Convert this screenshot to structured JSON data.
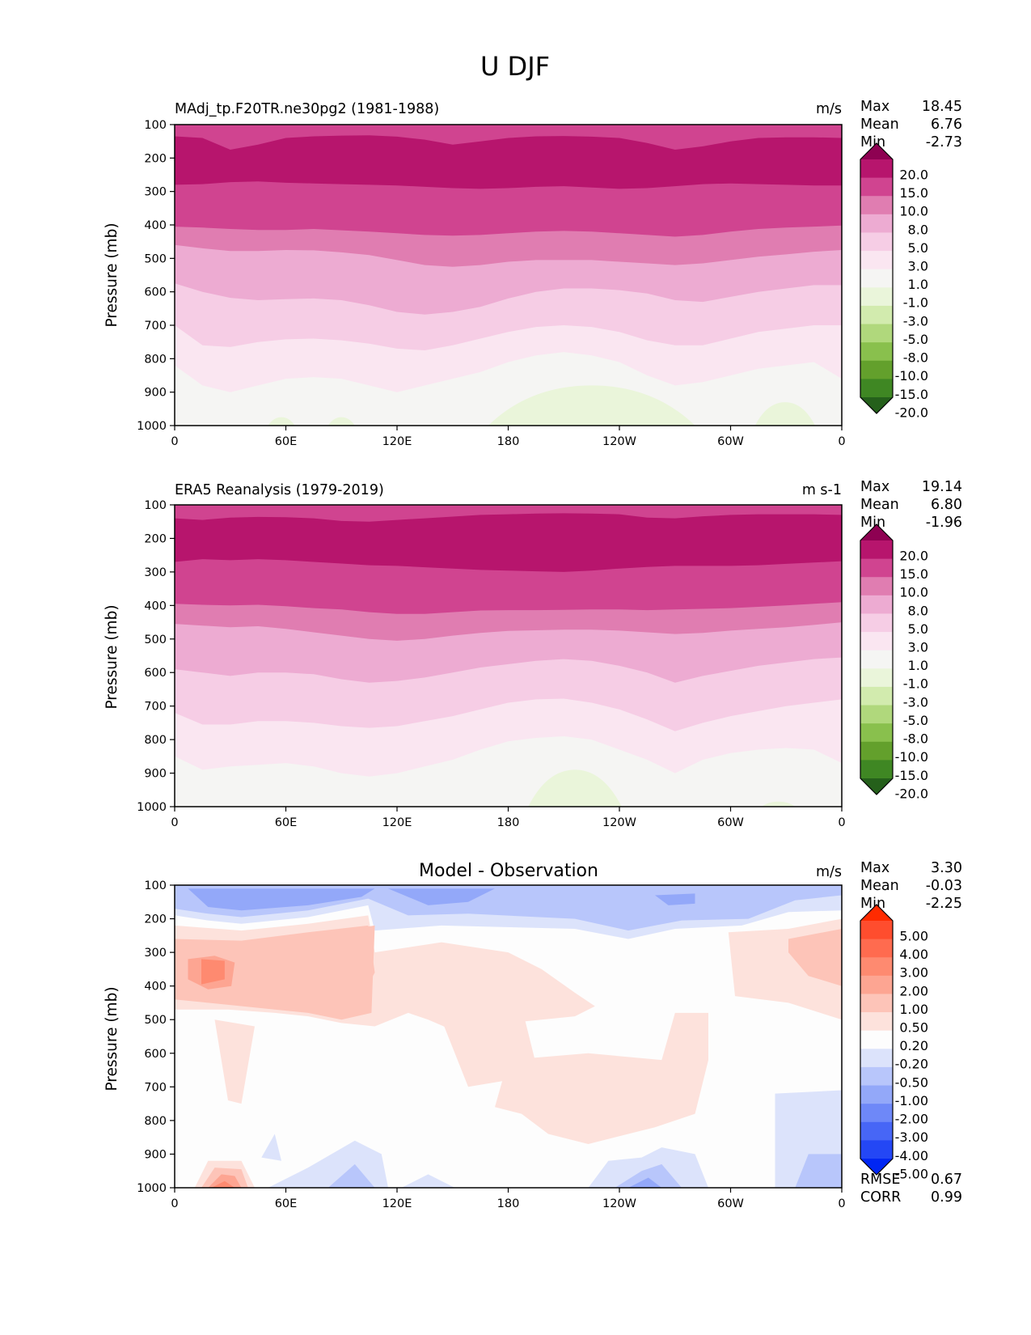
{
  "chart_data": {
    "type": "heatmap",
    "suptitle": "U DJF",
    "panels": [
      {
        "id": "model",
        "title_left": "MAdj_tp.F20TR.ne30pg2 (1981-1988)",
        "title_center": "",
        "title_right": "m/s",
        "ylabel": "Pressure (mb)",
        "yticks": [
          "100",
          "200",
          "300",
          "400",
          "500",
          "600",
          "700",
          "800",
          "900",
          "1000"
        ],
        "ylim": [
          1000,
          100
        ],
        "xticks": [
          "0",
          "60E",
          "120E",
          "180",
          "120W",
          "60W",
          "0"
        ],
        "xlim": [
          0,
          360
        ],
        "stats": [
          {
            "label": "Max",
            "value": "18.45"
          },
          {
            "label": "Mean",
            "value": "6.76"
          },
          {
            "label": "Min",
            "value": "-2.73"
          }
        ],
        "colormap": "PiYG_r",
        "levels": [
          "20.0",
          "15.0",
          "10.0",
          "8.0",
          "5.0",
          "3.0",
          "1.0",
          "-1.0",
          "-3.0",
          "-5.0",
          "-8.0",
          "-10.0",
          "-15.0",
          "-20.0"
        ],
        "colors": [
          "#8e0152",
          "#b7156d",
          "#d04490",
          "#e07db1",
          "#edabd2",
          "#f6cde5",
          "#fae6f1",
          "#f5f5f3",
          "#eaf5da",
          "#d2ebae",
          "#b0d87c",
          "#89c04d",
          "#63a02c",
          "#3f8723",
          "#25601b"
        ],
        "fields": {
          "boundaries": [
            {
              "level": 15.0,
              "depth_mb": [
                135,
                140,
                175,
                160,
                140,
                135,
                133,
                132,
                136,
                145,
                160,
                150,
                140,
                135,
                134,
                136,
                140,
                155,
                175,
                165,
                150,
                140,
                138,
                138,
                140
              ]
            },
            {
              "level": 20.0,
              "depth_mb": [
                null
              ]
            },
            {
              "level": 10.0,
              "depth_mb": [
                280,
                278,
                272,
                270,
                274,
                276,
                278,
                280,
                282,
                286,
                290,
                292,
                290,
                286,
                284,
                288,
                292,
                290,
                284,
                278,
                276,
                278,
                280,
                282,
                282
              ]
            },
            {
              "level": 8.0,
              "depth_mb": [
                405,
                408,
                412,
                415,
                415,
                412,
                416,
                420,
                425,
                430,
                432,
                430,
                425,
                420,
                418,
                420,
                425,
                430,
                435,
                430,
                420,
                412,
                408,
                405,
                402
              ]
            },
            {
              "level": 5.0,
              "depth_mb": [
                460,
                470,
                478,
                478,
                475,
                476,
                482,
                490,
                505,
                520,
                525,
                520,
                510,
                505,
                505,
                505,
                510,
                515,
                520,
                515,
                505,
                495,
                488,
                480,
                475
              ]
            },
            {
              "level": 3.0,
              "depth_mb": [
                575,
                600,
                618,
                625,
                622,
                620,
                625,
                640,
                660,
                668,
                660,
                645,
                620,
                600,
                590,
                590,
                595,
                605,
                625,
                630,
                615,
                600,
                590,
                580,
                580
              ]
            },
            {
              "level": 1.0,
              "depth_mb": [
                700,
                760,
                765,
                750,
                742,
                740,
                745,
                755,
                770,
                775,
                760,
                740,
                720,
                705,
                700,
                705,
                720,
                745,
                760,
                760,
                740,
                720,
                710,
                700,
                700
              ]
            },
            {
              "level": -1.0,
              "depth_mb": [
                820,
                880,
                900,
                880,
                860,
                855,
                860,
                880,
                900,
                880,
                860,
                840,
                810,
                790,
                780,
                790,
                810,
                850,
                880,
                870,
                850,
                830,
                820,
                810,
                860
              ]
            }
          ]
        }
      },
      {
        "id": "obs",
        "title_left": "ERA5 Reanalysis (1979-2019)",
        "title_center": "",
        "title_right": "m s-1",
        "ylabel": "Pressure (mb)",
        "yticks": [
          "100",
          "200",
          "300",
          "400",
          "500",
          "600",
          "700",
          "800",
          "900",
          "1000"
        ],
        "ylim": [
          1000,
          100
        ],
        "xticks": [
          "0",
          "60E",
          "120E",
          "180",
          "120W",
          "60W",
          "0"
        ],
        "xlim": [
          0,
          360
        ],
        "stats": [
          {
            "label": "Max",
            "value": "19.14"
          },
          {
            "label": "Mean",
            "value": "6.80"
          },
          {
            "label": "Min",
            "value": "-1.96"
          }
        ],
        "colormap": "PiYG_r",
        "levels": [
          "20.0",
          "15.0",
          "10.0",
          "8.0",
          "5.0",
          "3.0",
          "1.0",
          "-1.0",
          "-3.0",
          "-5.0",
          "-8.0",
          "-10.0",
          "-15.0",
          "-20.0"
        ],
        "colors": [
          "#8e0152",
          "#b7156d",
          "#d04490",
          "#e07db1",
          "#edabd2",
          "#f6cde5",
          "#fae6f1",
          "#f5f5f3",
          "#eaf5da",
          "#d2ebae",
          "#b0d87c",
          "#89c04d",
          "#63a02c",
          "#3f8723",
          "#25601b"
        ],
        "fields": {
          "boundaries": [
            {
              "level": 15.0,
              "depth_mb": [
                140,
                145,
                138,
                136,
                137,
                140,
                148,
                150,
                145,
                140,
                135,
                130,
                128,
                126,
                125,
                126,
                128,
                138,
                140,
                134,
                130,
                128,
                128,
                128,
                130
              ]
            },
            {
              "level": 10.0,
              "depth_mb": [
                270,
                262,
                265,
                262,
                265,
                270,
                275,
                280,
                282,
                286,
                290,
                294,
                296,
                298,
                300,
                296,
                290,
                285,
                282,
                282,
                282,
                280,
                276,
                272,
                268
              ]
            },
            {
              "level": 8.0,
              "depth_mb": [
                395,
                398,
                400,
                398,
                402,
                408,
                412,
                420,
                425,
                425,
                420,
                415,
                414,
                414,
                413,
                412,
                412,
                414,
                412,
                410,
                408,
                404,
                400,
                395,
                390
              ]
            },
            {
              "level": 5.0,
              "depth_mb": [
                455,
                460,
                465,
                462,
                470,
                480,
                490,
                500,
                505,
                500,
                490,
                482,
                476,
                474,
                472,
                472,
                475,
                480,
                485,
                482,
                475,
                470,
                465,
                458,
                450
              ]
            },
            {
              "level": 3.0,
              "depth_mb": [
                590,
                600,
                610,
                600,
                600,
                605,
                620,
                630,
                625,
                615,
                600,
                585,
                575,
                565,
                560,
                565,
                580,
                600,
                630,
                610,
                595,
                580,
                570,
                560,
                555
              ]
            },
            {
              "level": 1.0,
              "depth_mb": [
                720,
                755,
                755,
                745,
                745,
                750,
                760,
                765,
                760,
                745,
                730,
                710,
                690,
                680,
                678,
                690,
                710,
                740,
                775,
                750,
                730,
                715,
                700,
                690,
                680
              ]
            },
            {
              "level": -1.0,
              "depth_mb": [
                850,
                890,
                880,
                875,
                870,
                880,
                900,
                910,
                900,
                880,
                860,
                830,
                805,
                795,
                790,
                800,
                830,
                860,
                900,
                860,
                840,
                830,
                825,
                830,
                870
              ]
            }
          ]
        }
      },
      {
        "id": "diff",
        "title_left": "",
        "title_center": "Model - Observation",
        "title_right": "m/s",
        "ylabel": "Pressure (mb)",
        "yticks": [
          "100",
          "200",
          "300",
          "400",
          "500",
          "600",
          "700",
          "800",
          "900",
          "1000"
        ],
        "ylim": [
          1000,
          100
        ],
        "xticks": [
          "0",
          "60E",
          "120E",
          "180",
          "120W",
          "60W",
          "0"
        ],
        "xlim": [
          0,
          360
        ],
        "stats": [
          {
            "label": "Max",
            "value": "3.30"
          },
          {
            "label": "Mean",
            "value": "-0.03"
          },
          {
            "label": "Min",
            "value": "-2.25"
          }
        ],
        "extra_stats": [
          {
            "label": "RMSE",
            "value": "0.67"
          },
          {
            "label": "CORR",
            "value": "0.99"
          }
        ],
        "colormap": "diverging_bwr",
        "levels": [
          "5.00",
          "4.00",
          "3.00",
          "2.00",
          "1.00",
          "0.50",
          "0.20",
          "-0.20",
          "-0.50",
          "-1.00",
          "-2.00",
          "-3.00",
          "-4.00",
          "-5.00"
        ],
        "colors": [
          "#ff2b00",
          "#ff4d2e",
          "#ff6b4f",
          "#fe8a70",
          "#fda592",
          "#fdc4b8",
          "#fde2dc",
          "#fdfdfd",
          "#dce3fb",
          "#b8c6fb",
          "#93a8f9",
          "#6e88f8",
          "#4766f6",
          "#2447f5",
          "#0026f3"
        ]
      }
    ]
  }
}
